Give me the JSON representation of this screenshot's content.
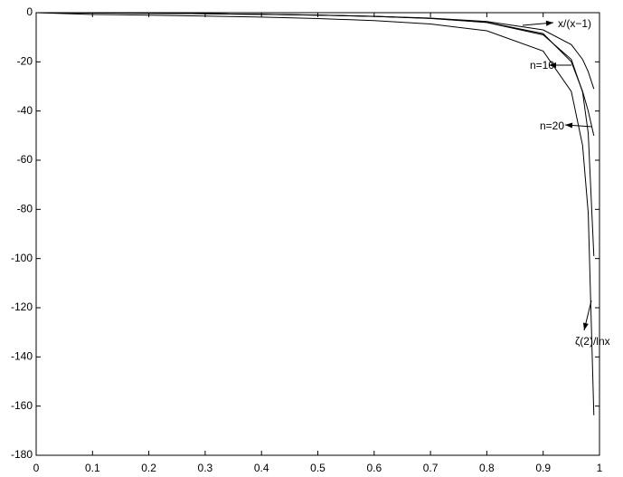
{
  "chart_data": {
    "type": "line",
    "x": [
      0,
      0.1,
      0.2,
      0.3,
      0.4,
      0.5,
      0.6,
      0.7,
      0.8,
      0.9,
      0.95,
      0.97,
      0.98,
      0.99
    ],
    "series": [
      {
        "name": "x/(x−1)",
        "color": "#000000",
        "values": [
          0,
          -0.111,
          -0.25,
          -0.429,
          -0.667,
          -1,
          -1.5,
          -2.333,
          -4,
          -9,
          -19,
          -32.3,
          -49,
          -99
        ]
      },
      {
        "name": "n=10",
        "color": "#000000",
        "values": [
          0,
          -0.11,
          -0.25,
          -0.43,
          -0.66,
          -0.98,
          -1.45,
          -2.2,
          -3.6,
          -7,
          -13,
          -19,
          -24,
          -31
        ]
      },
      {
        "name": "n=20",
        "color": "#000000",
        "values": [
          0,
          -0.11,
          -0.25,
          -0.43,
          -0.67,
          -1,
          -1.5,
          -2.3,
          -3.9,
          -8.5,
          -20,
          -32,
          -40,
          -50
        ]
      },
      {
        "name": "ζ(2)/lnx",
        "color": "#000000",
        "values": [
          0,
          -0.714,
          -1.022,
          -1.366,
          -1.795,
          -2.373,
          -3.22,
          -4.612,
          -7.372,
          -15.61,
          -32.07,
          -54,
          -81.4,
          -163.7
        ]
      }
    ],
    "xlim": [
      0,
      1
    ],
    "xticks": [
      0,
      0.1,
      0.2,
      0.3,
      0.4,
      0.5,
      0.6,
      0.7,
      0.8,
      0.9,
      1
    ],
    "ylim": [
      -180,
      0
    ],
    "yticks": [
      0,
      -20,
      -40,
      -60,
      -80,
      -100,
      -120,
      -140,
      -160,
      -180
    ],
    "grid": false
  }
}
